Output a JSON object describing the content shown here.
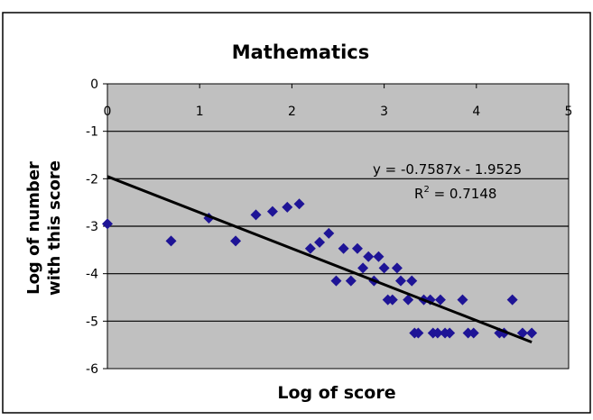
{
  "chart_data": {
    "type": "scatter",
    "title": "Mathematics",
    "xlabel": "Log of score",
    "ylabel": "Log of number with this score",
    "ylabel_lines": [
      "Log of number",
      "with this score"
    ],
    "xlim": [
      0,
      5
    ],
    "ylim": [
      -6,
      0
    ],
    "xticks": [
      0,
      1,
      2,
      3,
      4,
      5
    ],
    "yticks": [
      0,
      -1,
      -2,
      -3,
      -4,
      -5,
      -6
    ],
    "grid": "horizontal",
    "legend": "none",
    "colors": {
      "plot_bg": "#c0c0c0",
      "marker": "#1e1496",
      "trendline": "#000000",
      "gridline": "#000000",
      "frame": "#000000"
    },
    "series": [
      {
        "marker": "diamond",
        "points": [
          [
            0.0,
            -2.95
          ],
          [
            0.69,
            -3.31
          ],
          [
            1.1,
            -2.83
          ],
          [
            1.39,
            -3.31
          ],
          [
            1.61,
            -2.76
          ],
          [
            1.79,
            -2.69
          ],
          [
            1.95,
            -2.6
          ],
          [
            2.08,
            -2.53
          ],
          [
            2.2,
            -3.47
          ],
          [
            2.3,
            -3.34
          ],
          [
            2.4,
            -3.15
          ],
          [
            2.48,
            -4.15
          ],
          [
            2.56,
            -3.47
          ],
          [
            2.64,
            -4.15
          ],
          [
            2.71,
            -3.47
          ],
          [
            2.77,
            -3.88
          ],
          [
            2.83,
            -3.64
          ],
          [
            2.89,
            -4.15
          ],
          [
            2.94,
            -3.64
          ],
          [
            3.0,
            -3.88
          ],
          [
            3.04,
            -4.55
          ],
          [
            3.09,
            -4.55
          ],
          [
            3.14,
            -3.88
          ],
          [
            3.18,
            -4.15
          ],
          [
            3.26,
            -4.55
          ],
          [
            3.3,
            -4.15
          ],
          [
            3.33,
            -5.25
          ],
          [
            3.37,
            -5.25
          ],
          [
            3.43,
            -4.55
          ],
          [
            3.5,
            -4.55
          ],
          [
            3.53,
            -5.25
          ],
          [
            3.58,
            -5.25
          ],
          [
            3.61,
            -4.55
          ],
          [
            3.66,
            -5.25
          ],
          [
            3.71,
            -5.25
          ],
          [
            3.85,
            -4.55
          ],
          [
            3.91,
            -5.25
          ],
          [
            3.97,
            -5.25
          ],
          [
            4.25,
            -5.25
          ],
          [
            4.3,
            -5.25
          ],
          [
            4.39,
            -4.55
          ],
          [
            4.5,
            -5.25
          ],
          [
            4.6,
            -5.25
          ]
        ]
      }
    ],
    "trendline": {
      "slope": -0.7587,
      "intercept": -1.9525,
      "x_range": [
        0,
        4.6
      ],
      "equation_label": "y = -0.7587x - 1.9525",
      "r2_label_prefix": "R",
      "r2_label_sup": "2",
      "r2_label_value": " = 0.7148"
    }
  }
}
